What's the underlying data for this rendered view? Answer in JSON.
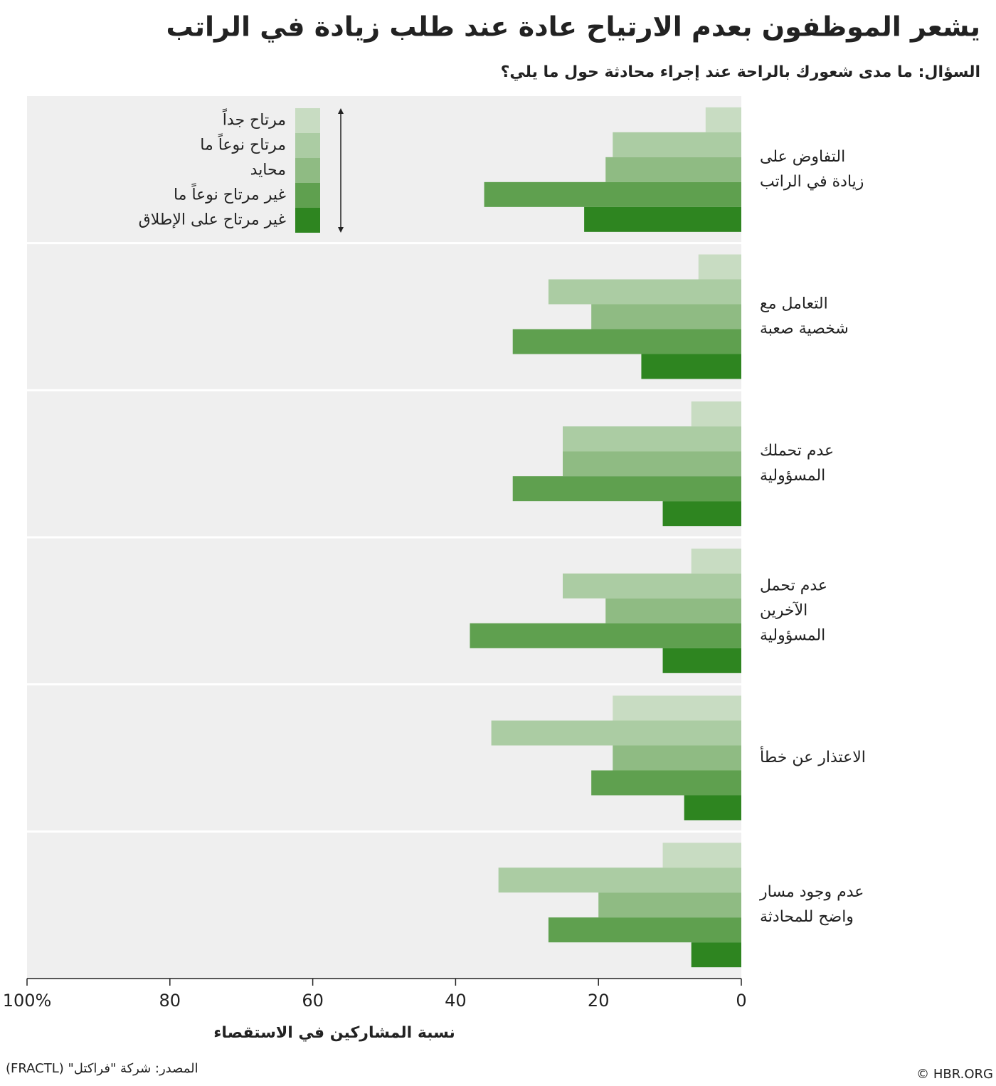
{
  "chart_data": {
    "type": "hbar",
    "title": "يشعر الموظفون بعدم الارتياح عادة عند طلب زيادة  في الراتب",
    "subtitle": "السؤال: ما مدى شعورك بالراحة عند إجراء محادثة حول ما يلي؟",
    "x_label": "نسبة المشاركين في الاستقصاء",
    "source": "المصدر: شركة \"فراكتل\" (FRACTL)",
    "credit": "© HBR.ORG",
    "categories": [
      [
        "التفاوض على",
        "زيادة في الراتب"
      ],
      [
        "التعامل مع",
        "شخصية صعبة"
      ],
      [
        "عدم تحملك",
        "المسؤولية"
      ],
      [
        "عدم تحمل",
        "الآخرين",
        "المسؤولية"
      ],
      [
        "الاعتذار عن خطأ"
      ],
      [
        "عدم وجود مسار",
        "واضح للمحادثة"
      ]
    ],
    "series": [
      {
        "name": "مرتاح جداً",
        "color": "#c8dcc2",
        "values": [
          5,
          6,
          7,
          7,
          18,
          11
        ]
      },
      {
        "name": "مرتاح نوعاً ما",
        "color": "#abcca3",
        "values": [
          18,
          27,
          25,
          25,
          35,
          34
        ]
      },
      {
        "name": "محايد",
        "color": "#8fbb83",
        "values": [
          19,
          21,
          25,
          19,
          18,
          20
        ]
      },
      {
        "name": "غير مرتاح نوعاً ما",
        "color": "#5fa04f",
        "values": [
          36,
          32,
          32,
          38,
          21,
          27
        ]
      },
      {
        "name": "غير مرتاح على الإطلاق",
        "color": "#2e8520",
        "values": [
          22,
          14,
          11,
          11,
          8,
          7
        ]
      }
    ],
    "xlim": [
      0,
      100
    ],
    "x_reversed": true,
    "xticks": [
      0,
      20,
      40,
      60,
      80,
      {
        "value": 100,
        "label": "100%"
      }
    ],
    "legend": "top-left"
  }
}
